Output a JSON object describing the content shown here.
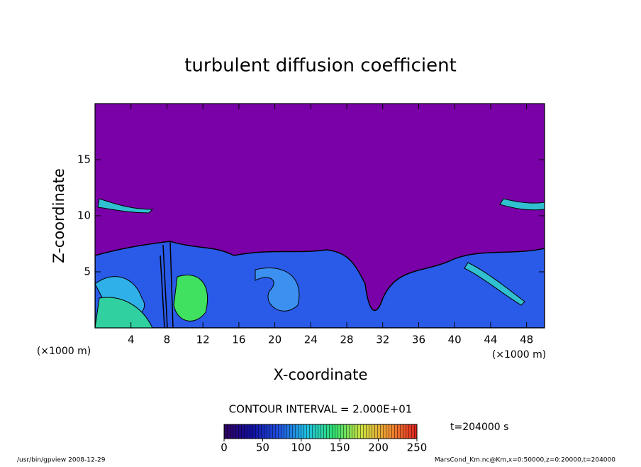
{
  "chart_data": {
    "type": "contour",
    "title": "turbulent diffusion coefficient",
    "xlabel": "X-coordinate",
    "ylabel": "Z-coordinate",
    "x_unit": "(×1000 m)",
    "y_unit": "(×1000 m)",
    "xlim": [
      0,
      50
    ],
    "ylim": [
      0,
      20
    ],
    "xticks": [
      4,
      8,
      12,
      16,
      20,
      24,
      28,
      32,
      36,
      40,
      44,
      48
    ],
    "yticks": [
      5,
      10,
      15
    ],
    "contour_interval": "CONTOUR INTERVAL = 2.000E+01",
    "time_label": "t=204000 s",
    "colorbar": {
      "clim": [
        0,
        250
      ],
      "ticks": [
        0,
        50,
        100,
        150,
        200,
        250
      ],
      "colors": [
        "#300060",
        "#1010a0",
        "#2050e0",
        "#20c0e0",
        "#30e070",
        "#d0e040",
        "#f09030",
        "#e02020"
      ]
    },
    "footer_left": "/usr/bin/gpview   2008-12-29",
    "footer_right": "MarsCond_Km.nc@Km,x=0:50000,z=0:20000,t=204000"
  }
}
